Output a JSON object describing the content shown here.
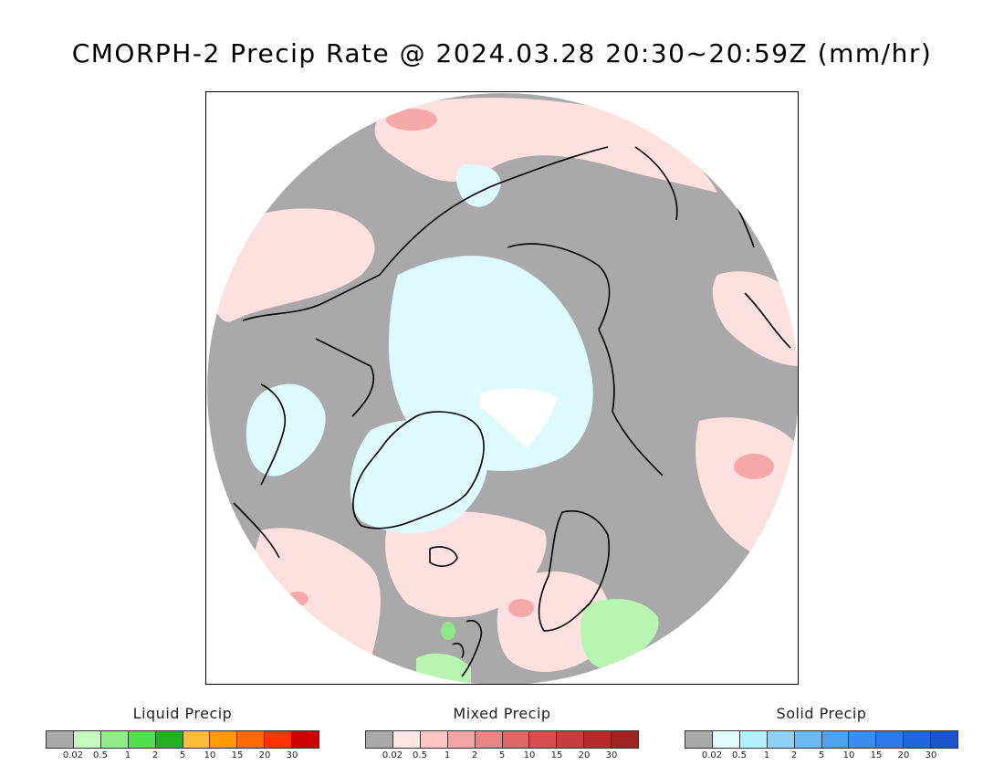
{
  "title": "CMORPH-2 Precip Rate @ 2024.03.28 20:30~20:59Z (mm/hr)",
  "map": {
    "projection": "north-polar-stereographic",
    "colors": {
      "no_precip": "#a9a9a9",
      "mixed_light": "#ffe0e0",
      "mixed_medium": "#f4a8a8",
      "solid_light": "#dcfaff",
      "liquid_light": "#b8f5b0",
      "liquid_medium": "#8ee887",
      "no_data": "#ffffff",
      "coastline": "#000000"
    }
  },
  "legends": [
    {
      "title": "Liquid Precip",
      "colors": [
        "#a9a9a9",
        "#c6f8c0",
        "#92ec88",
        "#4fe04f",
        "#22b022",
        "#ffbb3a",
        "#ff9900",
        "#ff6a00",
        "#ff3300",
        "#cc0000"
      ],
      "ticks": [
        "0.02",
        "0.5",
        "1",
        "2",
        "5",
        "10",
        "15",
        "20",
        "30"
      ]
    },
    {
      "title": "Mixed Precip",
      "colors": [
        "#a9a9a9",
        "#ffe6e6",
        "#ffc4c4",
        "#f4a4a4",
        "#e88686",
        "#de6868",
        "#d44e4e",
        "#c73c3c",
        "#b52c2c",
        "#a02424"
      ],
      "ticks": [
        "0.02",
        "0.5",
        "1",
        "2",
        "5",
        "10",
        "15",
        "20",
        "30"
      ]
    },
    {
      "title": "Solid Precip",
      "colors": [
        "#a9a9a9",
        "#e0fcff",
        "#b2f0ff",
        "#8fd0f8",
        "#6cb8f4",
        "#4da2f0",
        "#3a8ced",
        "#2e7ae8",
        "#2266dd",
        "#1a55cc"
      ],
      "ticks": [
        "0.02",
        "0.5",
        "1",
        "2",
        "5",
        "10",
        "15",
        "20",
        "30"
      ]
    }
  ]
}
